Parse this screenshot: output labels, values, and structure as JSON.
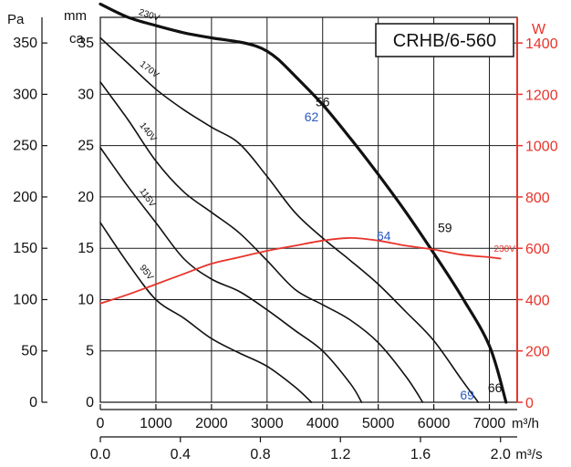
{
  "chart_data": {
    "type": "line",
    "title": "CRHB/6-560",
    "x_axis_primary": {
      "unit": "m³/h",
      "range": [
        0,
        7500
      ],
      "ticks": [
        0,
        1000,
        2000,
        3000,
        4000,
        5000,
        6000,
        7000
      ],
      "tick_labels": [
        "0",
        "1000",
        "2000",
        "3000",
        "4000",
        "5000",
        "6000",
        "7000"
      ]
    },
    "x_axis_secondary": {
      "unit": "m³/s",
      "tick_labels": [
        "0.0",
        "0.4",
        "0.8",
        "1.2",
        "1.6",
        "2.0"
      ],
      "tick_values_m3h": [
        0,
        1440,
        2880,
        4320,
        5760,
        7200
      ]
    },
    "y_axis_left_pa": {
      "unit": "Pa",
      "range": [
        0,
        375
      ],
      "ticks": [
        0,
        50,
        100,
        150,
        200,
        250,
        300,
        350
      ],
      "tick_labels": [
        "0",
        "50",
        "100",
        "150",
        "200",
        "250",
        "300",
        "350"
      ]
    },
    "y_axis_left_mmca": {
      "unit_line1": "mm",
      "unit_line2": "ca",
      "ticks_mmca": [
        0,
        5,
        10,
        15,
        20,
        25,
        30,
        35
      ],
      "tick_labels": [
        "0",
        "5",
        "10",
        "15",
        "20",
        "25",
        "30",
        "35"
      ]
    },
    "y_axis_right_w": {
      "unit": "W",
      "range": [
        0,
        1500
      ],
      "ticks": [
        0,
        200,
        400,
        600,
        800,
        1000,
        1200,
        1400
      ],
      "tick_labels": [
        "0",
        "200",
        "400",
        "600",
        "800",
        "1000",
        "1200",
        "1400"
      ]
    },
    "grid": true,
    "series": [
      {
        "name": "230V",
        "label": "230V",
        "axis": "pressure_pa",
        "bold": true,
        "color": "#111111",
        "x": [
          0,
          500,
          1000,
          1500,
          2000,
          2500,
          2800,
          3000,
          3200,
          3500,
          4000,
          4500,
          5000,
          5500,
          6000,
          6500,
          7000,
          7300
        ],
        "y": [
          388,
          375,
          367,
          360,
          355,
          351,
          347,
          342,
          334,
          318,
          290,
          257,
          222,
          185,
          145,
          103,
          55,
          0
        ]
      },
      {
        "name": "170V",
        "label": "170V",
        "axis": "pressure_pa",
        "bold": false,
        "color": "#111111",
        "x": [
          0,
          500,
          1000,
          1500,
          2000,
          2500,
          3000,
          3500,
          4000,
          4500,
          5000,
          5500,
          6000,
          6500,
          6800
        ],
        "y": [
          355,
          330,
          305,
          285,
          268,
          252,
          220,
          185,
          160,
          138,
          115,
          88,
          60,
          22,
          0
        ]
      },
      {
        "name": "140V",
        "label": "140V",
        "axis": "pressure_pa",
        "bold": false,
        "color": "#111111",
        "x": [
          0,
          500,
          1000,
          1500,
          2000,
          2500,
          3000,
          3500,
          4000,
          4500,
          5000,
          5500,
          5800
        ],
        "y": [
          312,
          275,
          235,
          205,
          185,
          165,
          138,
          110,
          95,
          80,
          58,
          25,
          0
        ]
      },
      {
        "name": "115V",
        "label": "115V",
        "axis": "pressure_pa",
        "bold": false,
        "color": "#111111",
        "x": [
          0,
          500,
          1000,
          1500,
          2000,
          2500,
          3000,
          3500,
          4000,
          4500,
          4700
        ],
        "y": [
          248,
          210,
          175,
          140,
          120,
          108,
          90,
          70,
          50,
          18,
          0
        ]
      },
      {
        "name": "95V",
        "label": "95V",
        "axis": "pressure_pa",
        "bold": false,
        "color": "#111111",
        "x": [
          0,
          500,
          1000,
          1500,
          2000,
          2500,
          3000,
          3500,
          3800
        ],
        "y": [
          175,
          135,
          100,
          82,
          62,
          48,
          35,
          15,
          0
        ]
      },
      {
        "name": "230V",
        "label": "230V",
        "axis": "power_w",
        "bold": false,
        "color": "#e8332a",
        "x": [
          0,
          500,
          1000,
          1500,
          2000,
          2500,
          3000,
          3500,
          4000,
          4500,
          5000,
          5500,
          6000,
          6500,
          7000,
          7200
        ],
        "y": [
          385,
          420,
          460,
          500,
          540,
          565,
          590,
          610,
          630,
          640,
          630,
          610,
          595,
          575,
          565,
          560
        ]
      }
    ],
    "annotations": [
      {
        "text": "56",
        "color": "black",
        "x": 4000,
        "y_pa": 293
      },
      {
        "text": "62",
        "color": "blue",
        "x": 3800,
        "y_pa": 278
      },
      {
        "text": "59",
        "color": "black",
        "x": 6200,
        "y_pa": 170
      },
      {
        "text": "64",
        "color": "blue",
        "x": 5100,
        "y_pa": 162
      },
      {
        "text": "66",
        "color": "black",
        "x": 7100,
        "y_pa": 14
      },
      {
        "text": "69",
        "color": "blue",
        "x": 6600,
        "y_pa": 7
      }
    ]
  }
}
